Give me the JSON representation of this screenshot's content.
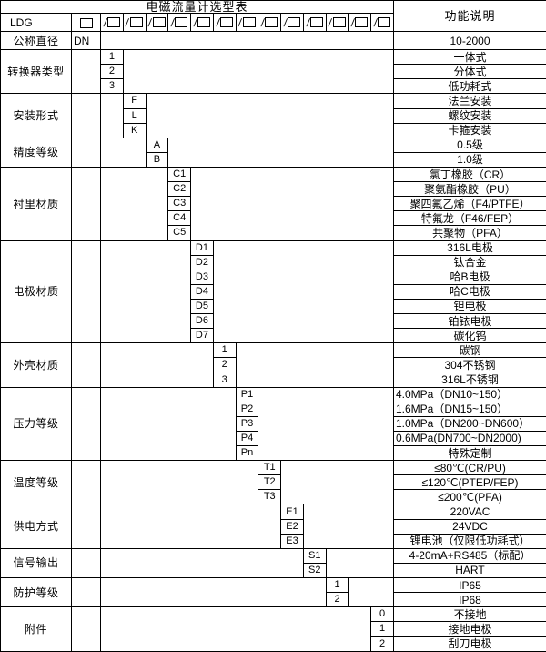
{
  "header": {
    "title": "电磁流量计选型表",
    "function_col": "功能说明",
    "model_code": "LDG",
    "code_slots": 13
  },
  "groups": [
    {
      "label": "公称直径",
      "dn": "DN",
      "col": 0,
      "rows": [
        {
          "code": "",
          "desc": "10-2000"
        }
      ]
    },
    {
      "label": "转换器类型",
      "dn": "",
      "col": 1,
      "rows": [
        {
          "code": "1",
          "desc": "一体式"
        },
        {
          "code": "2",
          "desc": "分体式"
        },
        {
          "code": "3",
          "desc": "低功耗式"
        }
      ]
    },
    {
      "label": "安装形式",
      "dn": "",
      "col": 2,
      "rows": [
        {
          "code": "F",
          "desc": "法兰安装"
        },
        {
          "code": "L",
          "desc": "螺纹安装"
        },
        {
          "code": "K",
          "desc": "卡箍安装"
        }
      ]
    },
    {
      "label": "精度等级",
      "dn": "",
      "col": 3,
      "rows": [
        {
          "code": "A",
          "desc": "0.5级"
        },
        {
          "code": "B",
          "desc": "1.0级"
        }
      ]
    },
    {
      "label": "衬里材质",
      "dn": "",
      "col": 4,
      "rows": [
        {
          "code": "C1",
          "desc": "氯丁橡胶（CR）"
        },
        {
          "code": "C2",
          "desc": "聚氨酯橡胶（PU）"
        },
        {
          "code": "C3",
          "desc": "聚四氟乙烯（F4/PTFE）"
        },
        {
          "code": "C4",
          "desc": "特氟龙（F46/FEP）"
        },
        {
          "code": "C5",
          "desc": "共聚物（PFA）"
        }
      ]
    },
    {
      "label": "电极材质",
      "dn": "",
      "col": 5,
      "rows": [
        {
          "code": "D1",
          "desc": "316L电极"
        },
        {
          "code": "D2",
          "desc": "钛合金"
        },
        {
          "code": "D3",
          "desc": "哈B电极"
        },
        {
          "code": "D4",
          "desc": "哈C电极"
        },
        {
          "code": "D5",
          "desc": "钽电极"
        },
        {
          "code": "D6",
          "desc": "铂铱电极"
        },
        {
          "code": "D7",
          "desc": "碳化钨"
        }
      ]
    },
    {
      "label": "外壳材质",
      "dn": "",
      "col": 6,
      "rows": [
        {
          "code": "1",
          "desc": "碳钢"
        },
        {
          "code": "2",
          "desc": "304不锈钢"
        },
        {
          "code": "3",
          "desc": "316L不锈钢"
        }
      ]
    },
    {
      "label": "压力等级",
      "dn": "",
      "col": 7,
      "rows": [
        {
          "code": "P1",
          "desc": "4.0MPa（DN10~150）",
          "align": "left"
        },
        {
          "code": "P2",
          "desc": "1.6MPa（DN15~150）",
          "align": "left"
        },
        {
          "code": "P3",
          "desc": "1.0MPa（DN200~DN600）",
          "align": "left"
        },
        {
          "code": "P4",
          "desc": "0.6MPa(DN700~DN2000)",
          "align": "left"
        },
        {
          "code": "Pn",
          "desc": "特殊定制"
        }
      ]
    },
    {
      "label": "温度等级",
      "dn": "",
      "col": 8,
      "rows": [
        {
          "code": "T1",
          "desc": "≤80℃(CR/PU)"
        },
        {
          "code": "T2",
          "desc": "≤120℃(PTEP/FEP)"
        },
        {
          "code": "T3",
          "desc": "≤200℃(PFA)"
        }
      ]
    },
    {
      "label": "供电方式",
      "dn": "",
      "col": 9,
      "rows": [
        {
          "code": "E1",
          "desc": "220VAC"
        },
        {
          "code": "E2",
          "desc": "24VDC"
        },
        {
          "code": "E3",
          "desc": "锂电池（仅限低功耗式）"
        }
      ]
    },
    {
      "label": "信号输出",
      "dn": "",
      "col": 10,
      "rows": [
        {
          "code": "S1",
          "desc": "4-20mA+RS485（标配）"
        },
        {
          "code": "S2",
          "desc": "HART"
        }
      ]
    },
    {
      "label": "防护等级",
      "dn": "",
      "col": 11,
      "rows": [
        {
          "code": "1",
          "desc": "IP65"
        },
        {
          "code": "2",
          "desc": "IP68"
        }
      ]
    },
    {
      "label": "附件",
      "dn": "",
      "col": 13,
      "rows": [
        {
          "code": "0",
          "desc": "不接地"
        },
        {
          "code": "1",
          "desc": "接地电极"
        },
        {
          "code": "2",
          "desc": "刮刀电极"
        }
      ]
    }
  ]
}
